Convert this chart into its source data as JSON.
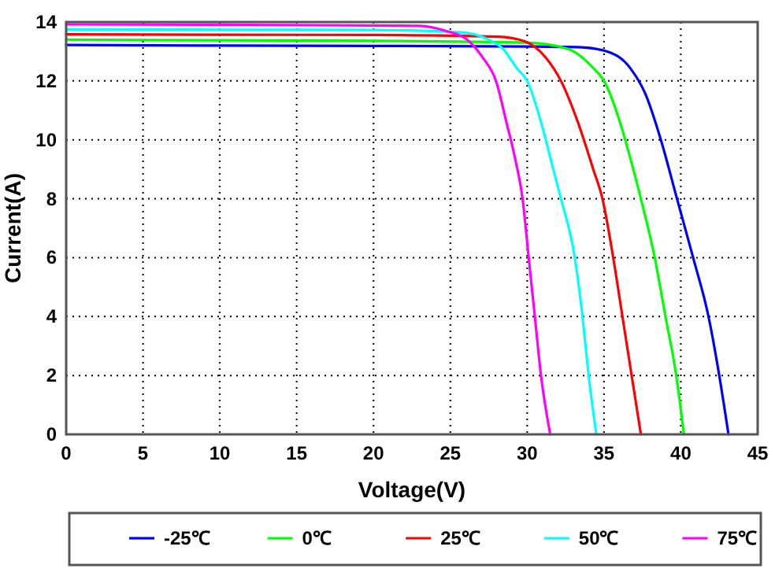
{
  "chart_data": {
    "type": "line",
    "xlabel": "Voltage(V)",
    "ylabel": "Current(A)",
    "xlim": [
      0,
      45
    ],
    "xticks": [
      0,
      5,
      10,
      15,
      20,
      25,
      30,
      35,
      40,
      45
    ],
    "ylim": [
      0,
      14
    ],
    "yticks": [
      0,
      2,
      4,
      6,
      8,
      10,
      12,
      14
    ],
    "grid": true,
    "legend": "bottom",
    "marker": "none",
    "line_style": "solid",
    "series": [
      {
        "name": "-25℃",
        "color": "#0000ff",
        "x": [
          0,
          10,
          20,
          30,
          33.3,
          35,
          36.7,
          37.7,
          38.7,
          39.75,
          40.8,
          41.8,
          42.5,
          43.1
        ],
        "values": [
          13.22,
          13.2,
          13.19,
          13.17,
          13.15,
          13.03,
          12.44,
          11.55,
          10,
          8,
          6,
          4,
          2,
          0
        ]
      },
      {
        "name": "0℃",
        "color": "#00ff00",
        "x": [
          0,
          10,
          20,
          29.9,
          32.6,
          34.3,
          35,
          36,
          36.7,
          37.4,
          38.3,
          39,
          39.7,
          40.2
        ],
        "values": [
          13.4,
          13.38,
          13.36,
          13.3,
          13.1,
          12.44,
          12,
          10.67,
          9.4,
          8,
          6,
          4,
          2,
          0
        ]
      },
      {
        "name": "25℃",
        "color": "#ff0000",
        "x": [
          0,
          10,
          20,
          28.1,
          29.8,
          31.2,
          32.2,
          33.3,
          34.3,
          34.9,
          35.6,
          36.2,
          36.8,
          37.4
        ],
        "values": [
          13.58,
          13.57,
          13.56,
          13.5,
          13.35,
          12.8,
          12,
          10.6,
          9,
          8,
          6,
          4,
          2,
          0
        ]
      },
      {
        "name": "50℃",
        "color": "#00ffff",
        "x": [
          0,
          10,
          20,
          25.7,
          27.5,
          28.5,
          29.3,
          30,
          30.9,
          31.7,
          32.2,
          33.1,
          33.6,
          34,
          34.5
        ],
        "values": [
          13.75,
          13.74,
          13.73,
          13.65,
          13.4,
          13.05,
          12.45,
          12,
          10.6,
          9,
          8,
          6,
          4,
          2,
          0
        ]
      },
      {
        "name": "75℃",
        "color": "#ff00ff",
        "x": [
          0,
          10,
          23,
          24.7,
          26.1,
          27.1,
          27.97,
          28.65,
          29.2,
          29.7,
          30.1,
          30.5,
          30.9,
          31.5
        ],
        "values": [
          13.92,
          13.91,
          13.87,
          13.7,
          13.4,
          12.8,
          12,
          10.6,
          9.4,
          8,
          6,
          4,
          2,
          0
        ]
      }
    ]
  }
}
